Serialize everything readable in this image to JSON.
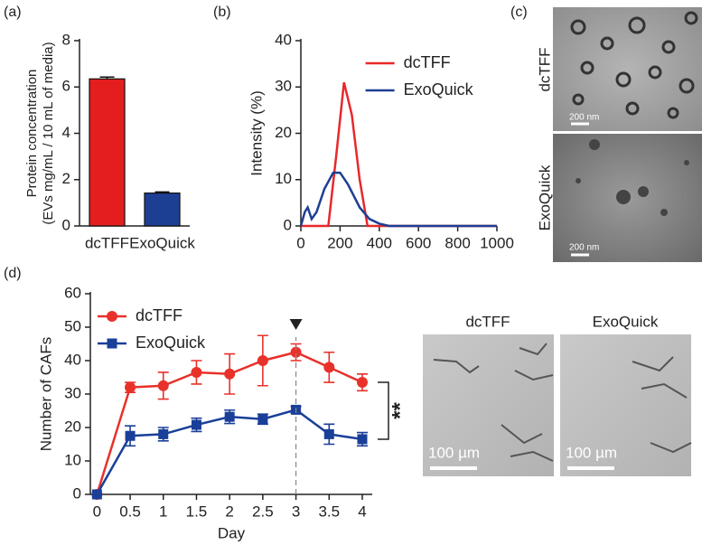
{
  "panel_labels": [
    "(a)",
    "(b)",
    "(c)",
    "(d)"
  ],
  "chart_data": [
    {
      "type": "bar",
      "y_label": [
        "Protein concentration",
        "(EVs mg/mL / 10 mL of media)"
      ],
      "categories": [
        "dcTFF",
        "ExoQuick"
      ],
      "values": [
        6.35,
        1.42
      ],
      "errors": [
        0.08,
        0.05
      ],
      "colors": [
        "#e41e1e",
        "#1d3f93"
      ],
      "ylim": [
        0,
        8
      ],
      "yticks": [
        0,
        2,
        4,
        6,
        8
      ]
    },
    {
      "type": "line",
      "y_label": "Intensity (%)",
      "legend": "upper right",
      "series": [
        {
          "name": "dcTFF",
          "color": "#e8282a",
          "x": [
            0,
            140,
            180,
            220,
            260,
            300,
            340,
            1000
          ],
          "values": [
            0,
            0,
            15,
            31,
            24,
            10,
            0,
            0
          ]
        },
        {
          "name": "ExoQuick",
          "color": "#1d3f93",
          "x": [
            0,
            20,
            35,
            55,
            80,
            120,
            165,
            200,
            240,
            300,
            350,
            400,
            450,
            1000
          ],
          "values": [
            0,
            3,
            4,
            1.5,
            3,
            8,
            11.5,
            11.5,
            9,
            4,
            1.5,
            0.5,
            0,
            0
          ]
        }
      ],
      "xlim": [
        0,
        1000
      ],
      "xticks": [
        0,
        200,
        400,
        600,
        800,
        1000
      ],
      "ylim": [
        0,
        40
      ],
      "yticks": [
        0,
        10,
        20,
        30,
        40
      ]
    },
    {
      "type": "line",
      "x_label": "Day",
      "y_label": "Number of CAFs",
      "legend": "upper left",
      "x": [
        0,
        0.5,
        1,
        1.5,
        2,
        2.5,
        3,
        3.5,
        4
      ],
      "series": [
        {
          "name": "dcTFF",
          "color": "#e8312a",
          "marker": "circle",
          "values": [
            0,
            32,
            32.5,
            36.5,
            36,
            40,
            42.5,
            38,
            33.5
          ],
          "errors": [
            0,
            1.5,
            4,
            3.5,
            6,
            7.5,
            2.5,
            4.5,
            2.5
          ]
        },
        {
          "name": "ExoQuick",
          "color": "#1a3f99",
          "marker": "square",
          "values": [
            0,
            17.5,
            18,
            20.8,
            23.2,
            22.5,
            25.3,
            18,
            16.5
          ],
          "errors": [
            0,
            3,
            2,
            2,
            2,
            1.5,
            1,
            3,
            2
          ]
        }
      ],
      "xlim": [
        -0.1,
        4.15
      ],
      "xticks": [
        0,
        0.5,
        1,
        1.5,
        2,
        2.5,
        3,
        3.5,
        4
      ],
      "ylim": [
        0,
        60
      ],
      "yticks": [
        0,
        10,
        20,
        30,
        40,
        50,
        60
      ],
      "vline": 3,
      "annotation": "**"
    }
  ],
  "micrographs": {
    "c_labels": [
      "dcTFF",
      "ExoQuick"
    ],
    "c_scale": "200 nm",
    "d_labels": [
      "dcTFF",
      "ExoQuick"
    ],
    "d_scale": "100 µm"
  }
}
